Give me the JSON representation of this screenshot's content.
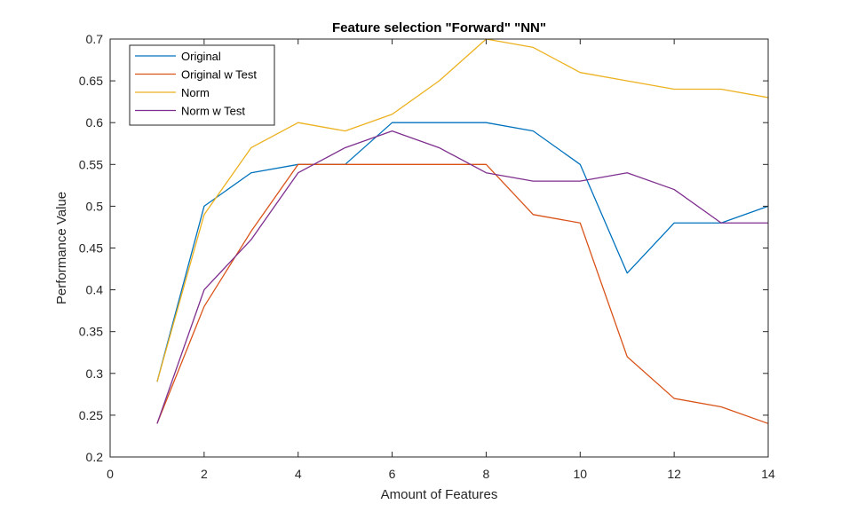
{
  "chart_data": {
    "type": "line",
    "title": "Feature selection \"Forward\" \"NN\"",
    "xlabel": "Amount of Features",
    "ylabel": "Performance Value",
    "xlim": [
      0,
      14
    ],
    "ylim": [
      0.2,
      0.7
    ],
    "xticks": [
      0,
      2,
      4,
      6,
      8,
      10,
      12,
      14
    ],
    "yticks": [
      0.2,
      0.25,
      0.3,
      0.35,
      0.4,
      0.45,
      0.5,
      0.55,
      0.6,
      0.65,
      0.7
    ],
    "grid": false,
    "legend_position": "top-left",
    "x": [
      1,
      2,
      3,
      4,
      5,
      6,
      7,
      8,
      9,
      10,
      11,
      12,
      13,
      14
    ],
    "series": [
      {
        "name": "Original",
        "color": "#0072BD",
        "values": [
          0.29,
          0.5,
          0.54,
          0.55,
          0.55,
          0.6,
          0.6,
          0.6,
          0.59,
          0.55,
          0.42,
          0.48,
          0.48,
          0.5
        ]
      },
      {
        "name": "Original w Test",
        "color": "#D95319",
        "values": [
          0.24,
          0.38,
          0.47,
          0.55,
          0.55,
          0.55,
          0.55,
          0.55,
          0.49,
          0.48,
          0.32,
          0.27,
          0.26,
          0.24
        ]
      },
      {
        "name": "Norm",
        "color": "#EDB120",
        "values": [
          0.29,
          0.49,
          0.57,
          0.6,
          0.59,
          0.61,
          0.65,
          0.7,
          0.69,
          0.66,
          0.65,
          0.64,
          0.64,
          0.63
        ]
      },
      {
        "name": "Norm w Test",
        "color": "#7E2F8E",
        "values": [
          0.24,
          0.4,
          0.46,
          0.54,
          0.57,
          0.59,
          0.57,
          0.54,
          0.53,
          0.53,
          0.54,
          0.52,
          0.48,
          0.48
        ]
      }
    ]
  }
}
